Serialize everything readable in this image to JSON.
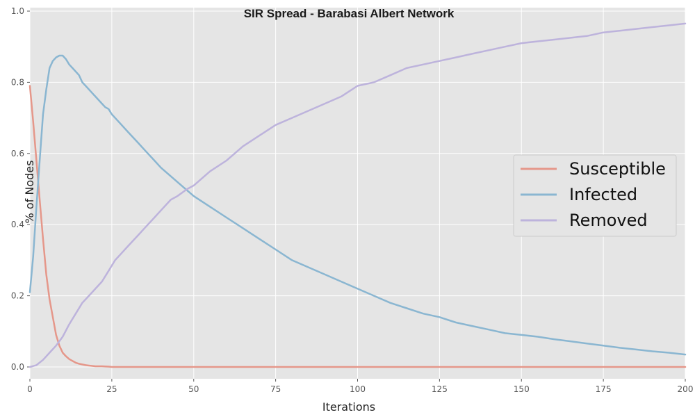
{
  "chart_data": {
    "type": "line",
    "title": "SIR Spread - Barabasi Albert Network",
    "xlabel": "Iterations",
    "ylabel": "% of Nodes",
    "xlim": [
      0,
      200
    ],
    "ylim": [
      0,
      1.0
    ],
    "xticks": [
      "0",
      "25",
      "50",
      "75",
      "100",
      "125",
      "150",
      "175",
      "200"
    ],
    "yticks": [
      "0.0",
      "0.2",
      "0.4",
      "0.6",
      "0.8",
      "1.0"
    ],
    "grid": true,
    "legend_position": "center-right",
    "series": [
      {
        "name": "Susceptible",
        "color": "#e5978a",
        "x": [
          0,
          1,
          2,
          3,
          4,
          5,
          6,
          7,
          8,
          9,
          10,
          11,
          12,
          13,
          14,
          15,
          16,
          17,
          18,
          19,
          20,
          22,
          24,
          25,
          30,
          40,
          50,
          75,
          100,
          125,
          150,
          175,
          200
        ],
        "y": [
          0.79,
          0.69,
          0.58,
          0.47,
          0.36,
          0.26,
          0.19,
          0.14,
          0.09,
          0.06,
          0.04,
          0.03,
          0.022,
          0.017,
          0.012,
          0.009,
          0.007,
          0.005,
          0.004,
          0.003,
          0.002,
          0.002,
          0.001,
          0.0,
          0.0,
          0.0,
          0.0,
          0.0,
          0.0,
          0.0,
          0.0,
          0.0,
          0.0
        ]
      },
      {
        "name": "Infected",
        "color": "#8ab6d1",
        "x": [
          0,
          1,
          2,
          3,
          4,
          5,
          6,
          7,
          8,
          9,
          10,
          11,
          12,
          13,
          14,
          15,
          16,
          17,
          18,
          19,
          20,
          21,
          22,
          23,
          24,
          25,
          27,
          30,
          33,
          35,
          38,
          40,
          45,
          50,
          55,
          60,
          65,
          70,
          75,
          80,
          85,
          90,
          95,
          100,
          105,
          110,
          115,
          120,
          125,
          130,
          135,
          140,
          145,
          150,
          155,
          160,
          165,
          170,
          175,
          180,
          185,
          190,
          195,
          200
        ],
        "y": [
          0.21,
          0.31,
          0.45,
          0.58,
          0.71,
          0.78,
          0.84,
          0.86,
          0.87,
          0.875,
          0.875,
          0.865,
          0.85,
          0.84,
          0.83,
          0.82,
          0.8,
          0.79,
          0.78,
          0.77,
          0.76,
          0.75,
          0.74,
          0.73,
          0.725,
          0.71,
          0.69,
          0.66,
          0.63,
          0.61,
          0.58,
          0.56,
          0.52,
          0.48,
          0.45,
          0.42,
          0.39,
          0.36,
          0.33,
          0.3,
          0.28,
          0.26,
          0.24,
          0.22,
          0.2,
          0.18,
          0.165,
          0.15,
          0.14,
          0.125,
          0.115,
          0.105,
          0.095,
          0.09,
          0.085,
          0.078,
          0.072,
          0.066,
          0.06,
          0.054,
          0.049,
          0.044,
          0.04,
          0.035
        ]
      },
      {
        "name": "Removed",
        "color": "#bdb3dc",
        "x": [
          0,
          2,
          4,
          6,
          8,
          10,
          12,
          14,
          16,
          18,
          20,
          22,
          24,
          26,
          28,
          30,
          33,
          35,
          38,
          40,
          43,
          45,
          48,
          50,
          55,
          60,
          65,
          70,
          75,
          80,
          85,
          90,
          95,
          100,
          105,
          110,
          115,
          120,
          125,
          130,
          135,
          140,
          145,
          150,
          155,
          160,
          165,
          170,
          175,
          180,
          185,
          190,
          195,
          200
        ],
        "y": [
          0.0,
          0.005,
          0.02,
          0.04,
          0.06,
          0.085,
          0.12,
          0.15,
          0.18,
          0.2,
          0.22,
          0.24,
          0.27,
          0.3,
          0.32,
          0.34,
          0.37,
          0.39,
          0.42,
          0.44,
          0.47,
          0.48,
          0.5,
          0.51,
          0.55,
          0.58,
          0.62,
          0.65,
          0.68,
          0.7,
          0.72,
          0.74,
          0.76,
          0.79,
          0.8,
          0.82,
          0.84,
          0.85,
          0.86,
          0.87,
          0.88,
          0.89,
          0.9,
          0.91,
          0.915,
          0.92,
          0.925,
          0.93,
          0.94,
          0.945,
          0.95,
          0.955,
          0.96,
          0.965
        ]
      }
    ]
  }
}
